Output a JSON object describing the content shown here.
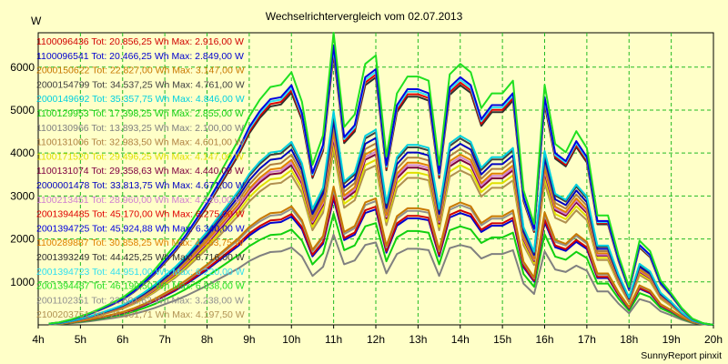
{
  "chart_data": {
    "type": "line",
    "title": "Wechselrichtervergleich vom 02.07.2013",
    "ylabel": "W",
    "footer": "SunnyReport pinxit",
    "xlim": [
      4,
      20
    ],
    "ylim": [
      0,
      6800
    ],
    "xticks": [
      {
        "v": 4,
        "label": "4h"
      },
      {
        "v": 5,
        "label": "5h"
      },
      {
        "v": 6,
        "label": "6h"
      },
      {
        "v": 7,
        "label": "7h"
      },
      {
        "v": 8,
        "label": "8h"
      },
      {
        "v": 9,
        "label": "9h"
      },
      {
        "v": 10,
        "label": "10h"
      },
      {
        "v": 11,
        "label": "11h"
      },
      {
        "v": 12,
        "label": "12h"
      },
      {
        "v": 13,
        "label": "13h"
      },
      {
        "v": 14,
        "label": "14h"
      },
      {
        "v": 15,
        "label": "15h"
      },
      {
        "v": 16,
        "label": "16h"
      },
      {
        "v": 17,
        "label": "17h"
      },
      {
        "v": 18,
        "label": "18h"
      },
      {
        "v": 19,
        "label": "19h"
      },
      {
        "v": 20,
        "label": "20h"
      }
    ],
    "yticks": [
      {
        "v": 1000,
        "label": "1000"
      },
      {
        "v": 2000,
        "label": "2000"
      },
      {
        "v": 3000,
        "label": "3000"
      },
      {
        "v": 4000,
        "label": "4000"
      },
      {
        "v": 5000,
        "label": "5000"
      },
      {
        "v": 6000,
        "label": "6000"
      }
    ],
    "grid": true,
    "legend_position": "top-left",
    "x": [
      4.25,
      4.5,
      4.75,
      5,
      5.25,
      5.5,
      5.75,
      6,
      6.25,
      6.5,
      6.75,
      7,
      7.25,
      7.5,
      7.75,
      8,
      8.25,
      8.5,
      8.75,
      9,
      9.25,
      9.5,
      9.75,
      10,
      10.25,
      10.5,
      10.75,
      11,
      11.25,
      11.5,
      11.75,
      12,
      12.25,
      12.5,
      12.75,
      13,
      13.25,
      13.5,
      13.75,
      14,
      14.25,
      14.5,
      14.75,
      15,
      15.25,
      15.5,
      15.75,
      16,
      16.25,
      16.5,
      16.75,
      17,
      17.25,
      17.5,
      17.75,
      18,
      18.25,
      18.5,
      18.75,
      19,
      19.25,
      19.5,
      19.75,
      20
    ],
    "series": [
      {
        "name": "1100096436",
        "legend": "1100096436 Tot: 20.856,25 Wh Max: 2.916,00 W",
        "color": "#d00000",
        "factor": 0.43
      },
      {
        "name": "1100096541",
        "legend": "1100096541 Tot: 20.466,25 Wh Max: 2.849,00 W",
        "color": "#0000d0",
        "factor": 0.42
      },
      {
        "name": "2000150622",
        "legend": "2000150622 Tot: 22.827,00 Wh Max: 3.147,00 W",
        "color": "#c87800",
        "factor": 0.46
      },
      {
        "name": "2000154799",
        "legend": "2000154799 Tot: 34.537,25 Wh Max: 4.761,00 W",
        "color": "#404040",
        "factor": 0.7
      },
      {
        "name": "2000149692",
        "legend": "2000149692 Tot: 35.357,75 Wh Max: 4.846,00 W",
        "color": "#00d0e0",
        "factor": 0.71
      },
      {
        "name": "1100129953",
        "legend": "1100129953 Tot: 17.398,25 Wh Max: 2.855,00 W",
        "color": "#10d010",
        "factor": 0.37
      },
      {
        "name": "1100130966",
        "legend": "1100130966 Tot: 13.893,25 Wh Max: 2.100,00 W",
        "color": "#808080",
        "factor": 0.3
      },
      {
        "name": "1100131006",
        "legend": "1100131006 Tot: 32.983,50 Wh Max: 4.601,00 W",
        "color": "#b08040",
        "factor": 0.66
      },
      {
        "name": "1100171520",
        "legend": "1100171520 Tot: 29.496,25 Wh Max: 4.147,00 W",
        "color": "#e0e000",
        "factor": 0.6
      },
      {
        "name": "1100131074",
        "legend": "1100131074 Tot: 29.358,63 Wh Max: 4.440,00 W",
        "color": "#800040",
        "factor": 0.62
      },
      {
        "name": "2000001478",
        "legend": "2000001478 Tot: 33.813,75 Wh Max: 4.671,00 W",
        "color": "#0000c0",
        "factor": 0.68
      },
      {
        "name": "1100213451",
        "legend": "1100213451 Tot: 28.960,00 Wh Max: 4.326,00 W",
        "color": "#d080d0",
        "factor": 0.63
      },
      {
        "name": "2001394485",
        "legend": "2001394485 Tot: 45.170,00 Wh Max: 6.275,00 W",
        "color": "#e00000",
        "factor": 0.91
      },
      {
        "name": "2001394725",
        "legend": "2001394725 Tot: 45.924,88 Wh Max: 6.340,00 W",
        "color": "#0000e0",
        "factor": 0.93
      },
      {
        "name": "1100289887",
        "legend": "1100289887 Tot: 30.858,25 Wh Max: 4.363,75 W",
        "color": "#e08000",
        "factor": 0.64
      },
      {
        "name": "2001393249",
        "legend": "2001393249 Tot: 44.425,25 Wh Max: 6.716,00 W",
        "color": "#303030",
        "factor": 0.9
      },
      {
        "name": "2001394723",
        "legend": "2001394723 Tot: 44.951,00 Wh Max: 6.220,00 W",
        "color": "#30e0f0",
        "factor": 0.92
      },
      {
        "name": "2001394487",
        "legend": "2001394487 Tot: 46.190,50 Wh Max: 6.838,00 W",
        "color": "#20e020",
        "factor": 0.98
      },
      {
        "name": "2001102351",
        "legend": "2001102351 Tot: 22.601,63 Wh Max: 3.238,00 W",
        "color": "#909090",
        "factor": 0.45
      },
      {
        "name": "2100203751",
        "legend": "2100203751 Tot: 26.601,71 Wh Max: 4.197,50 W",
        "color": "#b09050",
        "factor": 0.58
      }
    ],
    "base_profile": [
      30,
      60,
      120,
      200,
      290,
      400,
      520,
      650,
      830,
      1050,
      1300,
      1600,
      1900,
      2250,
      2650,
      3050,
      3500,
      3950,
      4400,
      4950,
      5350,
      5650,
      5700,
      6000,
      5300,
      3800,
      4500,
      7000,
      4700,
      5000,
      6200,
      6400,
      4000,
      5500,
      5900,
      5900,
      5800,
      3800,
      5950,
      6200,
      6000,
      5150,
      5500,
      5500,
      5800,
      3200,
      2400,
      5700,
      4300,
      4100,
      4600,
      4200,
      2600,
      2600,
      1650,
      900,
      2000,
      1750,
      1050,
      750,
      400,
      150,
      40,
      0
    ]
  }
}
